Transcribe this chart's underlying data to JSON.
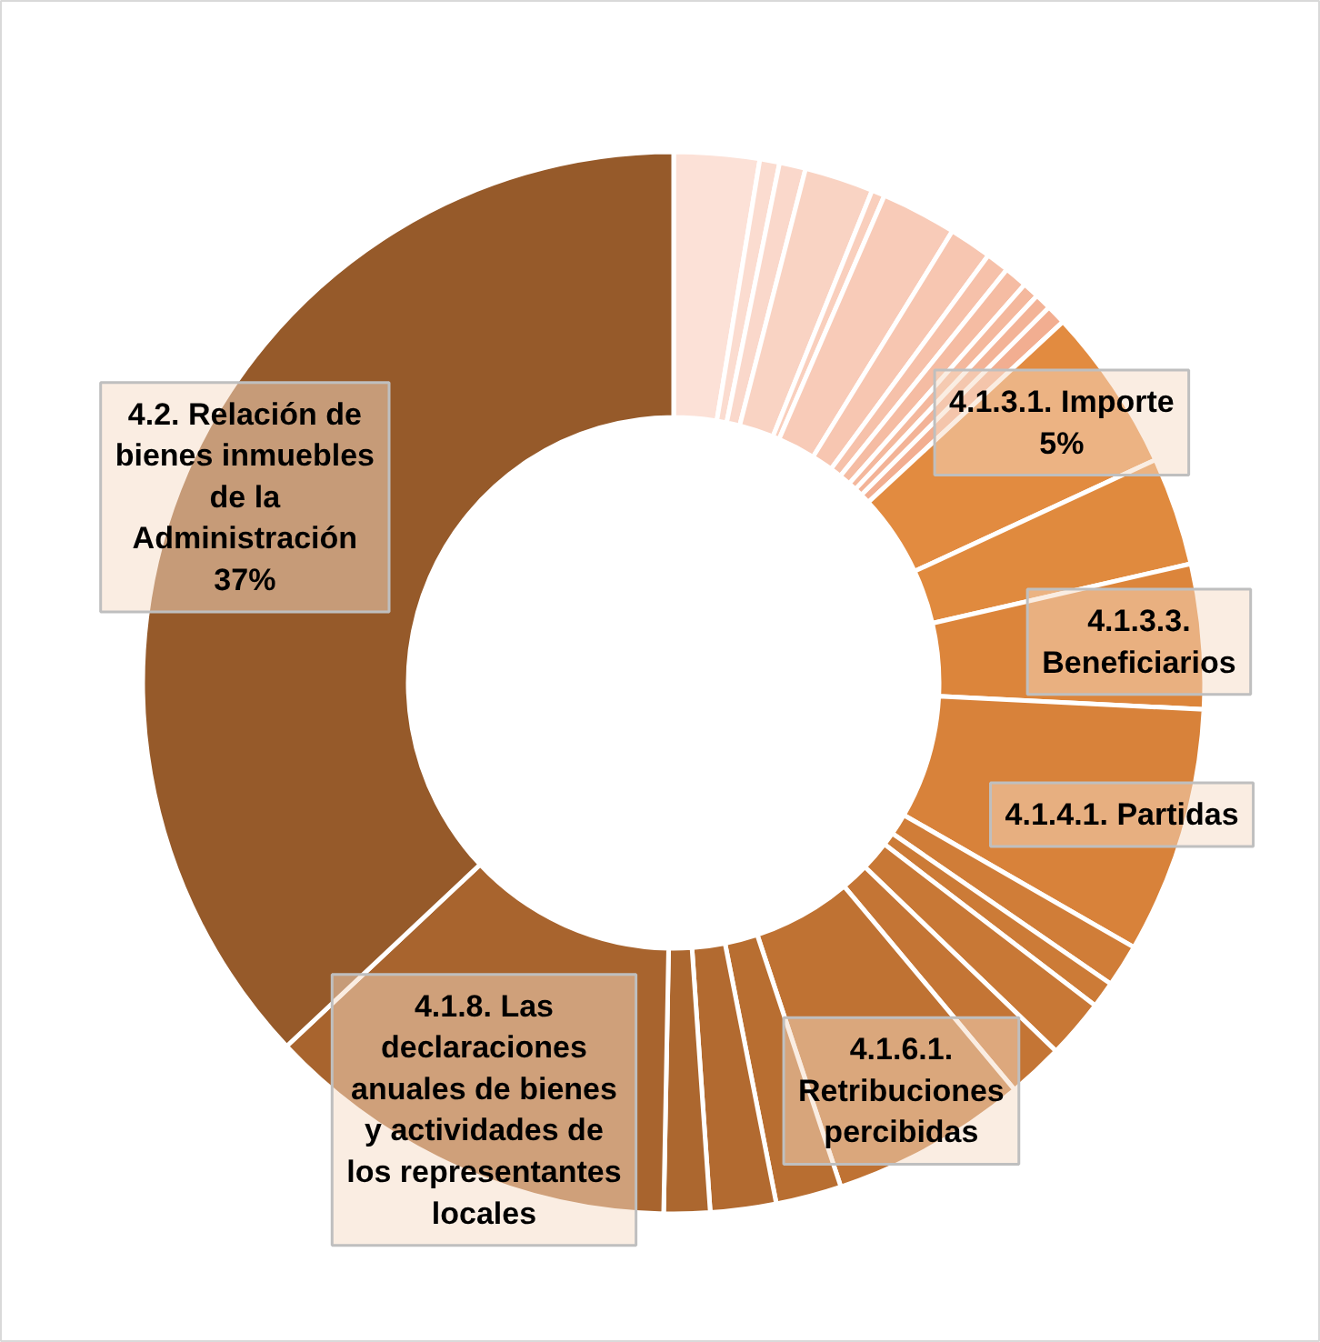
{
  "chart_data": {
    "type": "donut",
    "categories": [
      null,
      null,
      null,
      null,
      null,
      null,
      null,
      null,
      null,
      null,
      null,
      null,
      "4.1.3.1. Importe",
      null,
      "4.1.3.3. Beneficiarios",
      "4.1.4.1. Partidas",
      null,
      null,
      null,
      null,
      "4.1.6.1. Retribuciones percibidas",
      null,
      null,
      null,
      "4.1.8. Las declaraciones anuales de bienes y actividades de los representantes locales",
      "4.2. Relación de bienes inmuebles de la Administración"
    ],
    "values": [
      2.6,
      0.6,
      0.8,
      2.1,
      0.4,
      2.3,
      1.3,
      0.7,
      0.7,
      0.5,
      0.5,
      0.6,
      5,
      3.3,
      4.4,
      7.5,
      1.3,
      0.8,
      1.8,
      1.7,
      6,
      2,
      2,
      1.4,
      12.7,
      37
    ],
    "value_labels": [
      null,
      null,
      null,
      null,
      null,
      null,
      null,
      null,
      null,
      null,
      null,
      null,
      "5%",
      null,
      null,
      null,
      null,
      null,
      null,
      null,
      null,
      null,
      null,
      null,
      null,
      "37%"
    ],
    "colors": [
      "#fce1d7",
      "#fbdcd0",
      "#fad8cb",
      "#f9d3c3",
      "#f9cfbd",
      "#f8cbb8",
      "#f7c6b1",
      "#f6c1aa",
      "#f5bca3",
      "#f4b89d",
      "#f3b397",
      "#f2ae91",
      "#e28b40",
      "#e08a3e",
      "#dc853b",
      "#d8823a",
      "#d07d38",
      "#cc7b37",
      "#c87836",
      "#c47535",
      "#bf7233",
      "#b86e31",
      "#b26a30",
      "#ac672f",
      "#a8642e",
      "#965a2a"
    ]
  }
}
